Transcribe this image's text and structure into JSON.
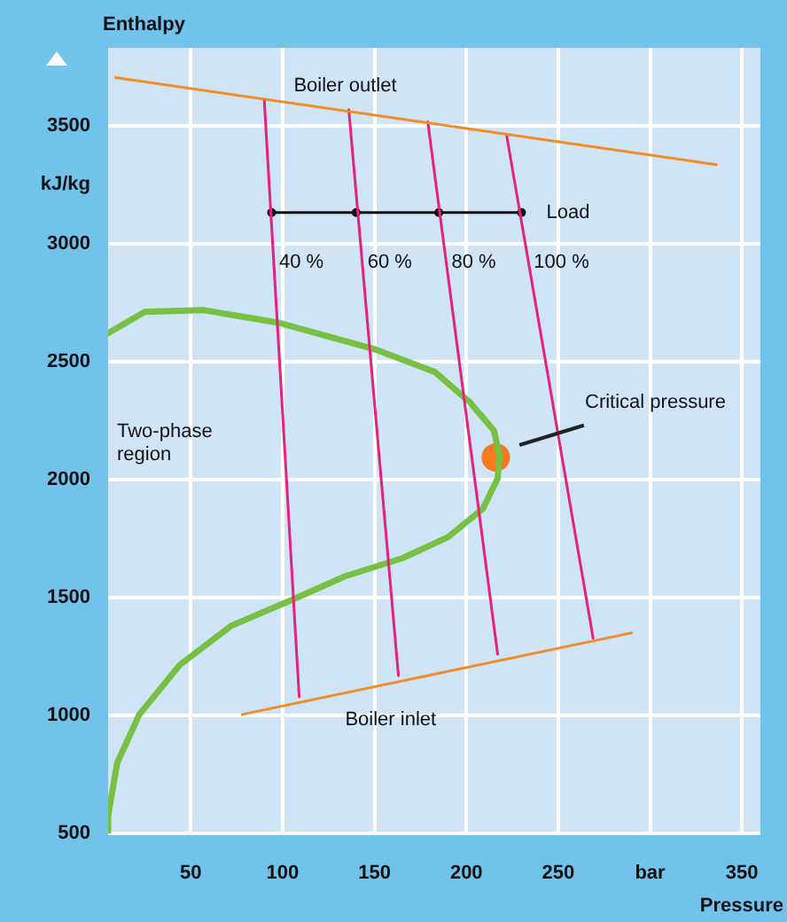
{
  "chart_data": {
    "type": "line",
    "ylabel": "Enthalpy",
    "xlabel": "Pressure",
    "xlim": [
      5,
      360
    ],
    "xticks": [
      50,
      100,
      150,
      200,
      250,
      {
        "value": 300,
        "label": "bar"
      },
      350
    ],
    "ylim": [
      500,
      3830
    ],
    "yticks": [
      500,
      1000,
      1500,
      2000,
      2500,
      3000,
      {
        "value": 3250,
        "label": "kJ/kg"
      },
      3500
    ],
    "grid": true,
    "legend": false,
    "marker": "none",
    "line_style": "solid",
    "series": [
      {
        "color": "#f28c28",
        "x": [
          9,
          336
        ],
        "values": [
          3704,
          3335
        ]
      },
      {
        "color": "#f28c28",
        "x": [
          78,
          290
        ],
        "values": [
          1004,
          1350
        ]
      },
      {
        "color": "#e6207d",
        "x": [
          90,
          109
        ],
        "values": [
          3606,
          1079
        ]
      },
      {
        "color": "#e6207d",
        "x": [
          136,
          163
        ],
        "values": [
          3568,
          1169
        ]
      },
      {
        "color": "#e6207d",
        "x": [
          179,
          217
        ],
        "values": [
          3516,
          1260
        ]
      },
      {
        "color": "#e6207d",
        "x": [
          222,
          269
        ],
        "values": [
          3455,
          1327
        ]
      },
      {
        "color": "#111111",
        "marker": "circle",
        "x": [
          94,
          140,
          185,
          230
        ],
        "values": [
          3132,
          3132,
          3132,
          3132
        ]
      },
      {
        "color": "#77c043",
        "x": [
          5,
          25,
          57,
          97,
          150,
          183,
          202,
          215,
          218,
          217,
          209,
          190,
          165,
          134,
          106,
          72,
          44,
          22,
          10,
          5,
          5
        ],
        "values": [
          2621,
          2711,
          2718,
          2666,
          2553,
          2455,
          2327,
          2207,
          2102,
          2004,
          1876,
          1756,
          1666,
          1590,
          1493,
          1380,
          1214,
          1004,
          800,
          575,
          500
        ]
      },
      {
        "type": "scatter",
        "marker": "circle",
        "color": "#f47b20",
        "x": [
          216
        ],
        "values": [
          2094
        ]
      }
    ],
    "annotations": [
      {
        "text": "Boiler outlet",
        "x": 106,
        "y": 3595
      },
      {
        "text": "Boiler inlet",
        "x": 134,
        "y": 1095
      },
      {
        "text": "Load",
        "x": 230,
        "y": 3132
      },
      {
        "text": "40 %",
        "x": 95.2,
        "y": 2921
      },
      {
        "text": "60 %",
        "x": 143.3,
        "y": 2921
      },
      {
        "text": "80 %",
        "x": 189,
        "y": 2921
      },
      {
        "text": "100 %",
        "x": 233.8,
        "y": 2921
      },
      "Two-phase region",
      "Critical pressure"
    ]
  }
}
